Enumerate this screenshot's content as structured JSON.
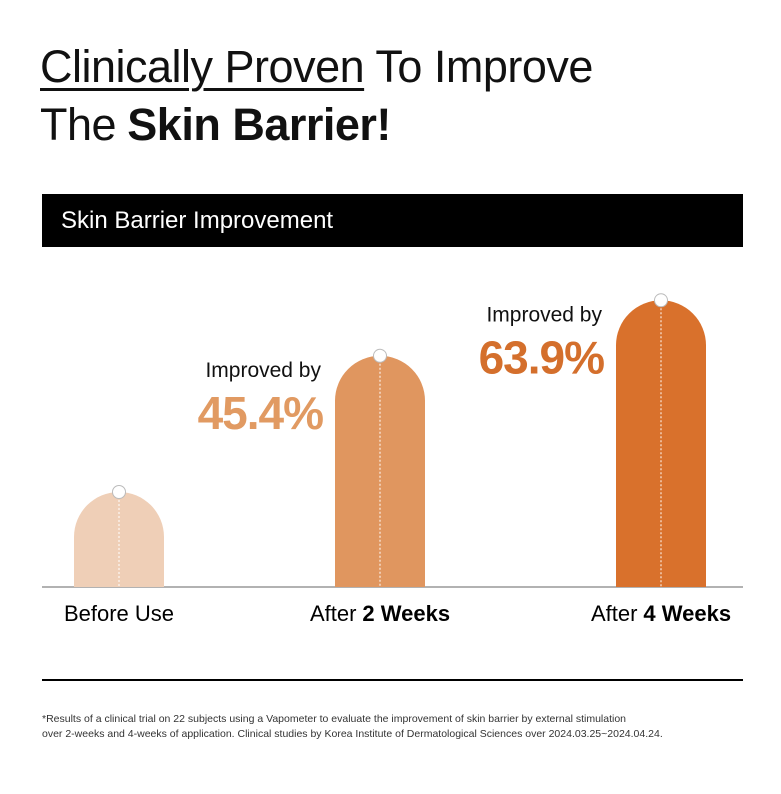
{
  "chart_data": {
    "type": "bar",
    "title": [
      [
        "Clinically Proven",
        "To Improve"
      ],
      [
        "The",
        "Skin Barrier!"
      ]
    ],
    "subtitle": "Skin Barrier Improvement",
    "categories": [
      [
        "Before Use"
      ],
      [
        "After",
        "2 Weeks"
      ],
      [
        "After",
        "4 Weeks"
      ]
    ],
    "values": [
      0,
      45.4,
      63.9
    ],
    "value_labels": [
      null,
      "45.4%",
      "63.9%"
    ],
    "annotations": [
      null,
      "Improved by",
      "Improved by"
    ],
    "colors": [
      "#efcfb7",
      "#e0965f",
      "#d9712c"
    ],
    "label_colors": [
      null,
      "#e19a62",
      "#d46f2c"
    ],
    "footnote": [
      "*Results of a clinical trial on 22 subjects using a Vapometer to evaluate the improvement of skin barrier by external stimulation",
      "over 2-weeks and 4-weeks of application. Clinical studies by Korea Institute of Dermatological Sciences over 2024.03.25~2024.04.24."
    ]
  }
}
